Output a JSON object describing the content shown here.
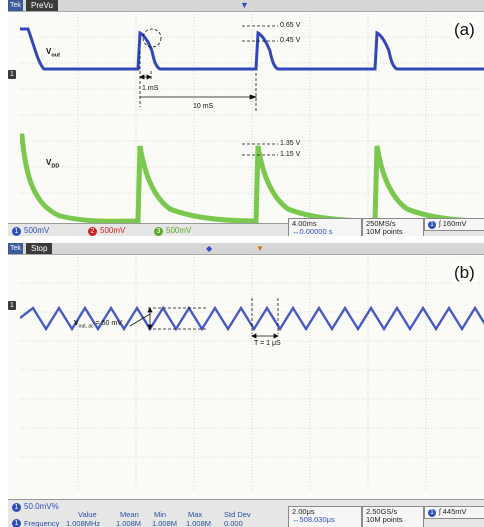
{
  "panel_a": {
    "mode": "PreVu",
    "tag": "Tek",
    "label": "(a)",
    "signals": {
      "vout": {
        "main": "V",
        "sub": "out"
      },
      "vdd": {
        "main": "V",
        "sub": "DD"
      }
    },
    "annotations": {
      "v_065": "0.65 V",
      "v_045": "0.45 V",
      "v_135": "1.35 V",
      "v_115": "1.15 V",
      "t_1ms": "1 mS",
      "t_10ms": "10 mS"
    },
    "status": {
      "ch1": {
        "num": "1",
        "scale": "500mV",
        "color": "#2f4fbf"
      },
      "ch2": {
        "num": "2",
        "scale": "500mV",
        "color": "#d02020"
      },
      "ch3": {
        "num": "3",
        "scale": "500mV",
        "color": "#5aaa2a"
      },
      "timebase": "4.00ms",
      "offset": "↔0.00000 s",
      "sample_rate": "250MS/s",
      "points": "10M points",
      "trigger_ch": "1",
      "trigger_level": "160mV"
    }
  },
  "panel_b": {
    "mode": "Stop",
    "tag": "Tek",
    "label": "(b)",
    "annotations": {
      "ripple": "V",
      "ripple_sub": "out, ac",
      "ripple_value": " = 50 mV",
      "period": "T = 1 μS"
    },
    "status": {
      "ch1": {
        "num": "1",
        "scale": "50.0mV%",
        "color": "#2f4fbf"
      },
      "measure_headers": [
        "Value",
        "Mean",
        "Min",
        "Max",
        "Std Dev"
      ],
      "measure_label": "Frequency",
      "measure_values": [
        "1.008MHz",
        "1.008M",
        "1.008M",
        "1.008M",
        "0.000"
      ],
      "timebase": "2.00μs",
      "offset": "↔508.030μs",
      "sample_rate": "2.50GS/s",
      "points": "10M points",
      "trigger_ch": "1",
      "trigger_level": "445mV"
    }
  },
  "colors": {
    "vout": "#3348b8",
    "vdd": "#6cc23a",
    "grid": "#bcbcbc"
  }
}
